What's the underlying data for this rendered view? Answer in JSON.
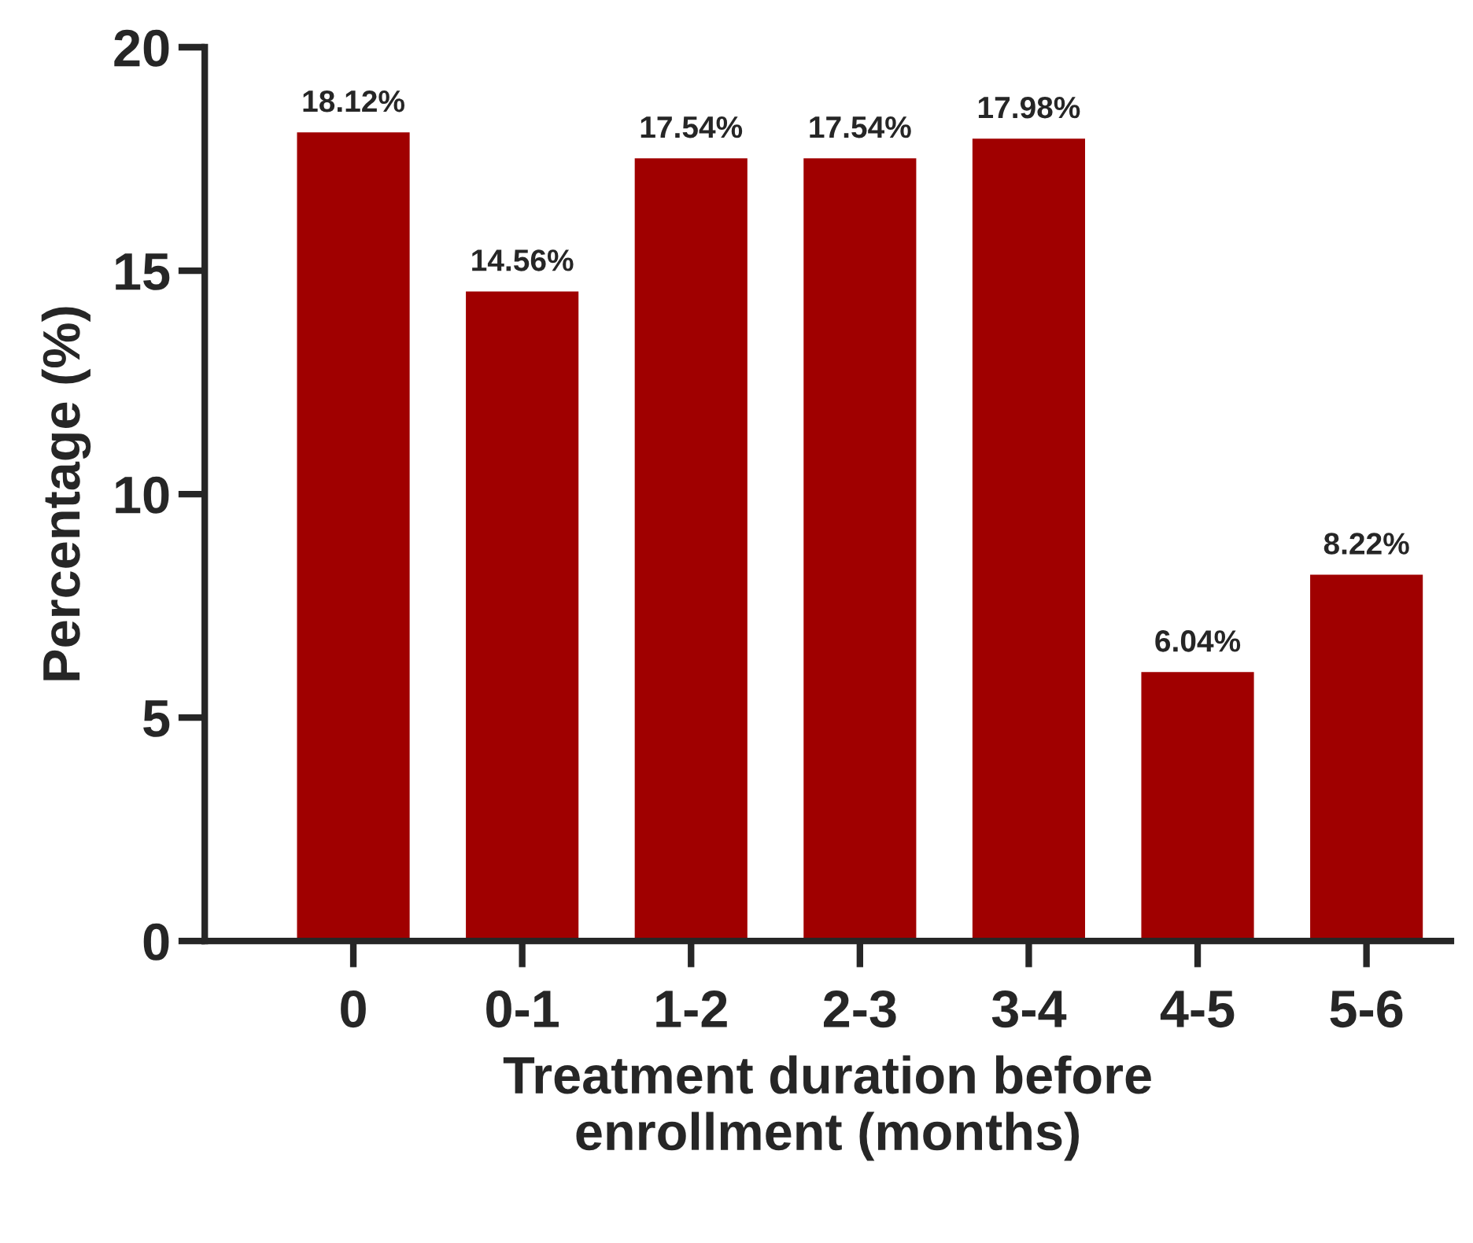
{
  "chart_data": {
    "type": "bar",
    "xlabel": "Treatment duration before\nenrollment (months)",
    "ylabel": "Percentage (%)",
    "categories": [
      "0",
      "0-1",
      "1-2",
      "2-3",
      "3-4",
      "4-5",
      "5-6"
    ],
    "values": [
      18.12,
      14.56,
      17.54,
      17.54,
      17.98,
      6.04,
      8.22
    ],
    "value_labels": [
      "18.12%",
      "14.56%",
      "17.54%",
      "17.54%",
      "17.98%",
      "6.04%",
      "8.22%"
    ],
    "color": "#a00000",
    "ylim": [
      0,
      20
    ],
    "yticks": [
      0,
      5,
      10,
      15,
      20
    ],
    "grid": false,
    "legend": false
  }
}
